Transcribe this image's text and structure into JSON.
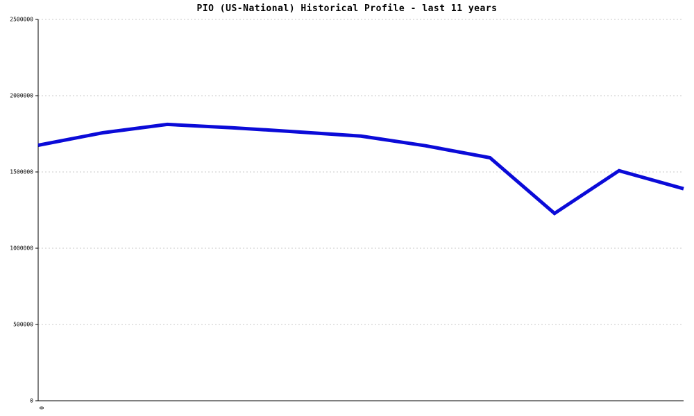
{
  "chart_data": {
    "type": "line",
    "title": "PIO (US-National) Historical Profile - last 11 years",
    "xlabel": "",
    "ylabel": "",
    "x": [
      0,
      1,
      2,
      3,
      4,
      5,
      6,
      7,
      8,
      9,
      10
    ],
    "series": [
      {
        "name": "PIO (US-National)",
        "values": [
          1675000,
          1757000,
          1812000,
          1790000,
          1763000,
          1735000,
          1672000,
          1593000,
          1228000,
          1508000,
          1390000
        ]
      }
    ],
    "ylim": [
      0,
      2500000
    ],
    "yticks": [
      0,
      500000,
      1000000,
      1500000,
      2000000,
      2500000
    ],
    "ytick_labels": [
      "0",
      "500000",
      "1000000",
      "1500000",
      "2000000",
      "2500000"
    ],
    "xtick_labels_visible": [
      "0"
    ],
    "grid": "horizontal-dashed",
    "legend": "none",
    "line_color": "#0b0bd8",
    "line_width": 5,
    "grid_color": "#c9c9c9",
    "axis_color": "#000000"
  }
}
